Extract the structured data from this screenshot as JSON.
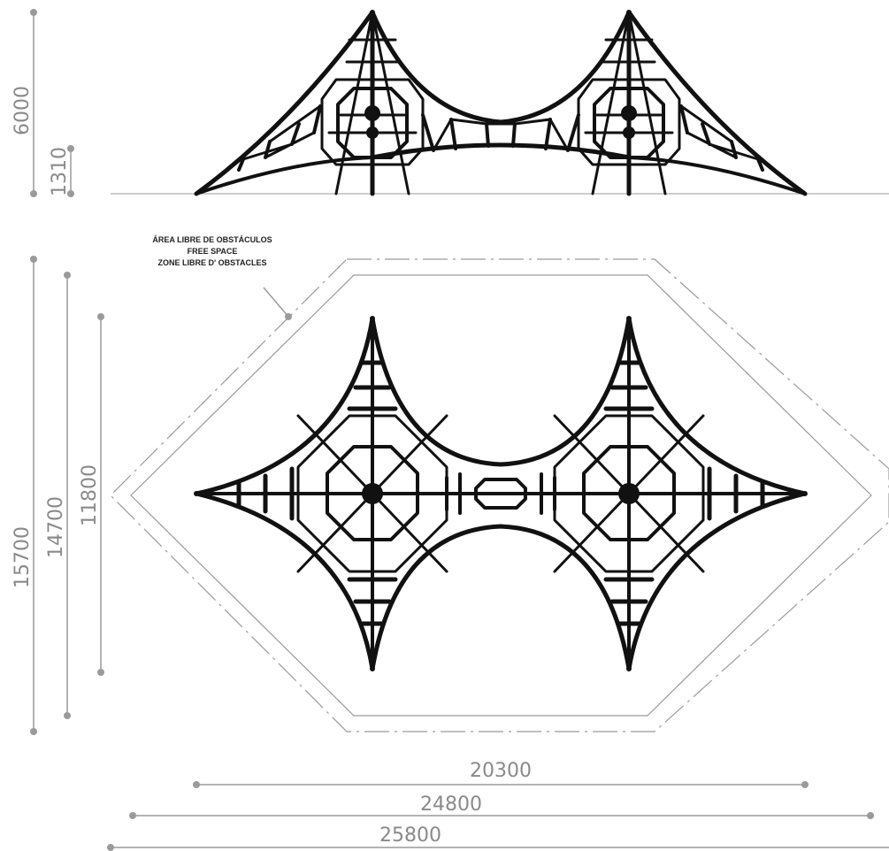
{
  "dimensions": {
    "side_height": "6000",
    "side_platform_height": "1310",
    "plan_free_space_depth": "15700",
    "plan_safety_depth": "14700",
    "plan_structure_depth": "11800",
    "structure_width": "20300",
    "safety_width": "24800",
    "free_space_width": "25800"
  },
  "free_space_label": {
    "es": "ÁREA LIBRE DE OBSTÁCULOS",
    "en": "FREE SPACE",
    "fr": "ZONE LIBRE D' OBSTACLES"
  },
  "colors": {
    "structure": "#111111",
    "dimension": "#9a9a9a"
  }
}
